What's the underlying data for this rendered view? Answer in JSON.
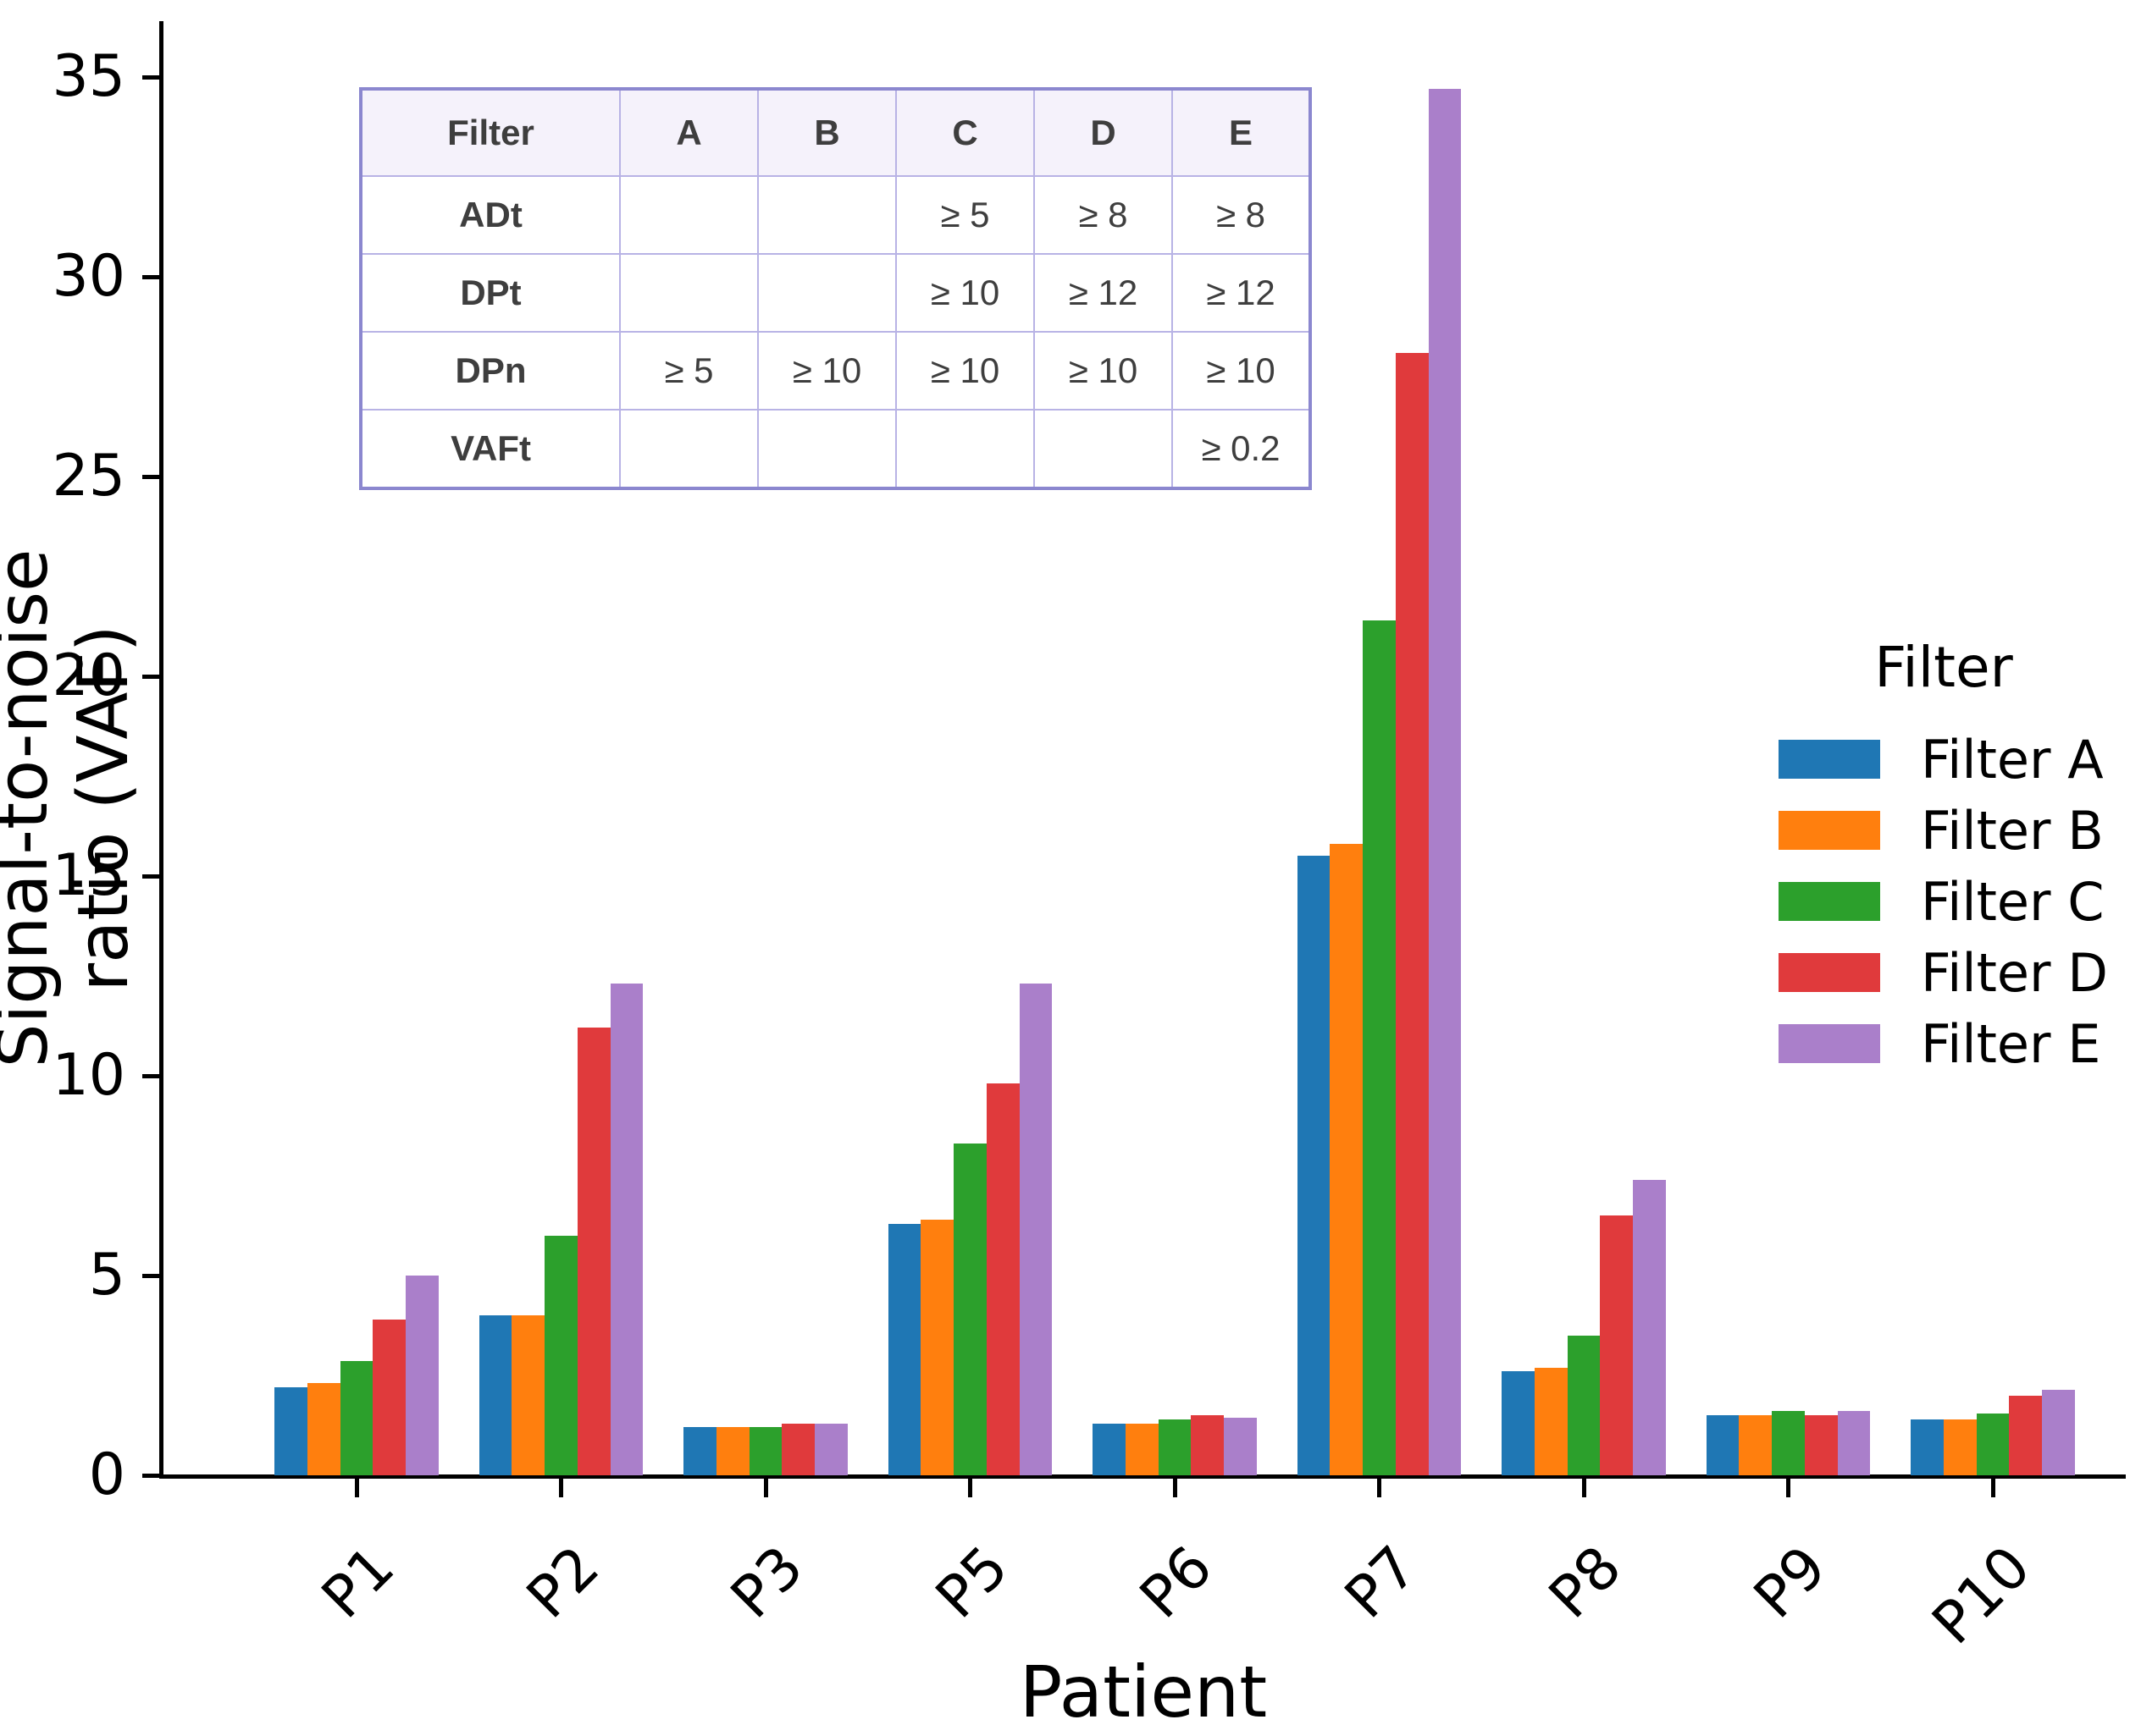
{
  "y_axis": {
    "label": "Signal-to-noise ratio (VAF)",
    "ticks": [
      0,
      5,
      10,
      15,
      20,
      25,
      30,
      35
    ]
  },
  "x_axis": {
    "label": "Patient"
  },
  "legend": {
    "title": "Filter",
    "entries": [
      {
        "label": "Filter A",
        "color": "#1f77b4"
      },
      {
        "label": "Filter B",
        "color": "#ff7f0e"
      },
      {
        "label": "Filter C",
        "color": "#2ca02c"
      },
      {
        "label": "Filter D",
        "color": "#e03a3c"
      },
      {
        "label": "Filter E",
        "color": "#aa7fca"
      }
    ]
  },
  "inset_table": {
    "header": [
      "Filter",
      "A",
      "B",
      "C",
      "D",
      "E"
    ],
    "rows": [
      {
        "label": "ADt",
        "values": [
          "",
          "",
          "≥ 5",
          "≥ 8",
          "≥ 8"
        ]
      },
      {
        "label": "DPt",
        "values": [
          "",
          "",
          "≥ 10",
          "≥ 12",
          "≥ 12"
        ]
      },
      {
        "label": "DPn",
        "values": [
          "≥ 5",
          "≥ 10",
          "≥ 10",
          "≥ 10",
          "≥ 10"
        ]
      },
      {
        "label": "VAFt",
        "values": [
          "",
          "",
          "",
          "",
          "≥ 0.2"
        ]
      }
    ]
  },
  "chart_data": {
    "type": "bar",
    "categories": [
      "P1",
      "P2",
      "P3",
      "P5",
      "P6",
      "P7",
      "P8",
      "P9",
      "P10"
    ],
    "series": [
      {
        "name": "Filter A",
        "color": "#1f77b4",
        "values": [
          2.2,
          4.0,
          1.2,
          6.3,
          1.3,
          15.5,
          2.6,
          1.5,
          1.4
        ]
      },
      {
        "name": "Filter B",
        "color": "#ff7f0e",
        "values": [
          2.3,
          4.0,
          1.2,
          6.4,
          1.3,
          15.8,
          2.7,
          1.5,
          1.4
        ]
      },
      {
        "name": "Filter C",
        "color": "#2ca02c",
        "values": [
          2.85,
          6.0,
          1.2,
          8.3,
          1.4,
          21.4,
          3.5,
          1.6,
          1.55
        ]
      },
      {
        "name": "Filter D",
        "color": "#e03a3c",
        "values": [
          3.9,
          11.2,
          1.3,
          9.8,
          1.5,
          28.1,
          6.5,
          1.5,
          2.0
        ]
      },
      {
        "name": "Filter E",
        "color": "#aa7fca",
        "values": [
          5.0,
          12.3,
          1.3,
          12.3,
          1.45,
          34.7,
          7.4,
          1.6,
          2.15
        ]
      }
    ],
    "title": "",
    "xlabel": "Patient",
    "ylabel": "Signal-to-noise ratio (VAF)",
    "ylim": [
      0,
      35
    ],
    "grid": false,
    "legend_position": "right"
  }
}
